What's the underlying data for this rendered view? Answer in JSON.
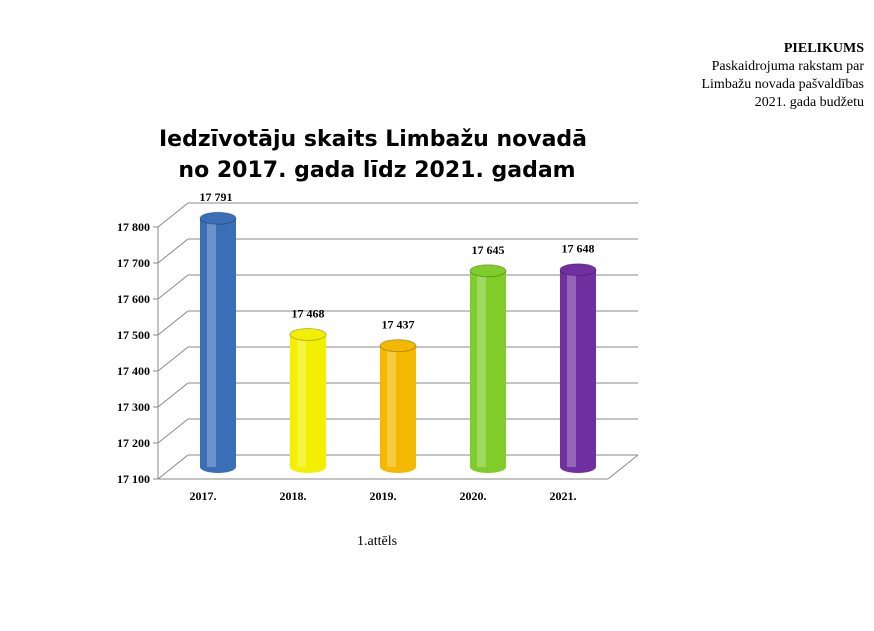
{
  "header": {
    "title": "PIELIKUMS",
    "lines": [
      "Paskaidrojuma rakstam par",
      "Limbažu novada pašvaldības",
      "2021. gada budžetu"
    ]
  },
  "chart_data": {
    "type": "bar",
    "title_lines": [
      "Iedzīvotāju skaits Limbažu novadā",
      "no 2017. gada līdz 2021. gadam"
    ],
    "categories": [
      "2017.",
      "2018.",
      "2019.",
      "2020.",
      "2021."
    ],
    "values": [
      17791,
      17468,
      17437,
      17645,
      17648
    ],
    "value_labels": [
      "17 791",
      "17 468",
      "17 437",
      "17 645",
      "17 648"
    ],
    "colors": [
      "#3a6fb8",
      "#f2f000",
      "#f5b800",
      "#7fcc2a",
      "#7030a0"
    ],
    "ylim": [
      17100,
      17800
    ],
    "yticks": [
      17100,
      17200,
      17300,
      17400,
      17500,
      17600,
      17700,
      17800
    ],
    "ytick_labels": [
      "17 100",
      "17 200",
      "17 300",
      "17 400",
      "17 500",
      "17 600",
      "17 700",
      "17 800"
    ],
    "grid": true,
    "xlabel": "",
    "ylabel": ""
  },
  "caption": "1.attēls"
}
